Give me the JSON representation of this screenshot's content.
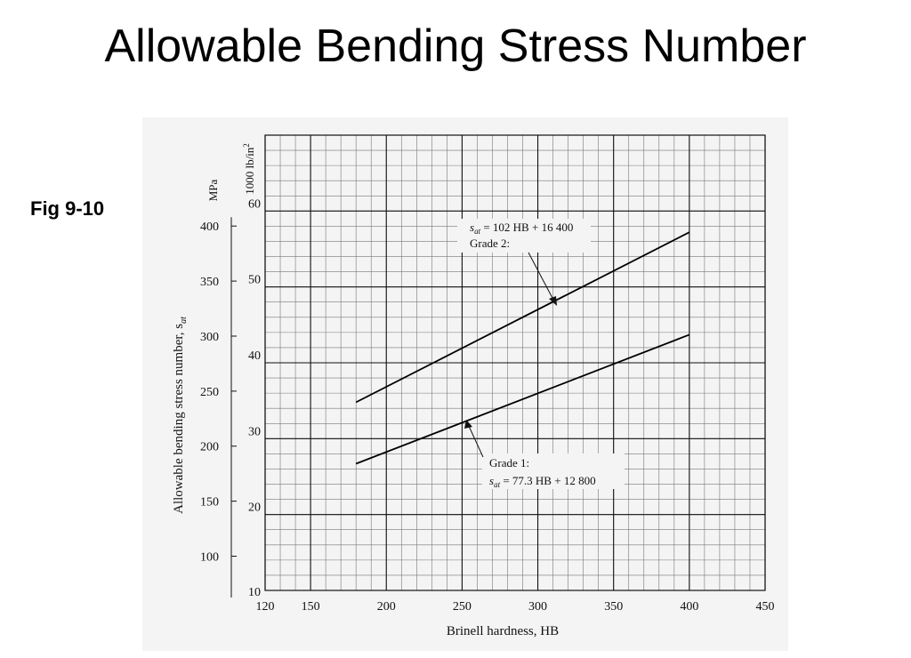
{
  "slide": {
    "title": "Allowable Bending Stress Number",
    "fig_label": "Fig 9-10"
  },
  "chart_data": {
    "type": "line",
    "xlabel": "Brinell hardness, HB",
    "ylabel_left": "Allowable bending stress number, s",
    "ylabel_left_sub": "at",
    "unit_left": "MPa",
    "unit_right": "1000 lb/in",
    "unit_right_sup": "2",
    "xlim": [
      120,
      450
    ],
    "ylim_ksi": [
      10,
      70
    ],
    "ylim_mpa": [
      68.9,
      482.6
    ],
    "x_ticks": [
      120,
      150,
      200,
      250,
      300,
      350,
      400,
      450
    ],
    "y_ticks_ksi": [
      10,
      20,
      30,
      40,
      50,
      60
    ],
    "y_ticks_mpa": [
      100,
      150,
      200,
      250,
      300,
      350,
      400
    ],
    "grid": true,
    "series": [
      {
        "name": "Grade 1:",
        "equation": "77.3 HB + 12 800",
        "x": [
          180,
          400
        ],
        "y": [
          26.7,
          43.7
        ]
      },
      {
        "name": "Grade 2:",
        "equation": "102 HB + 16 400",
        "x": [
          180,
          400
        ],
        "y": [
          34.8,
          57.2
        ]
      }
    ]
  }
}
